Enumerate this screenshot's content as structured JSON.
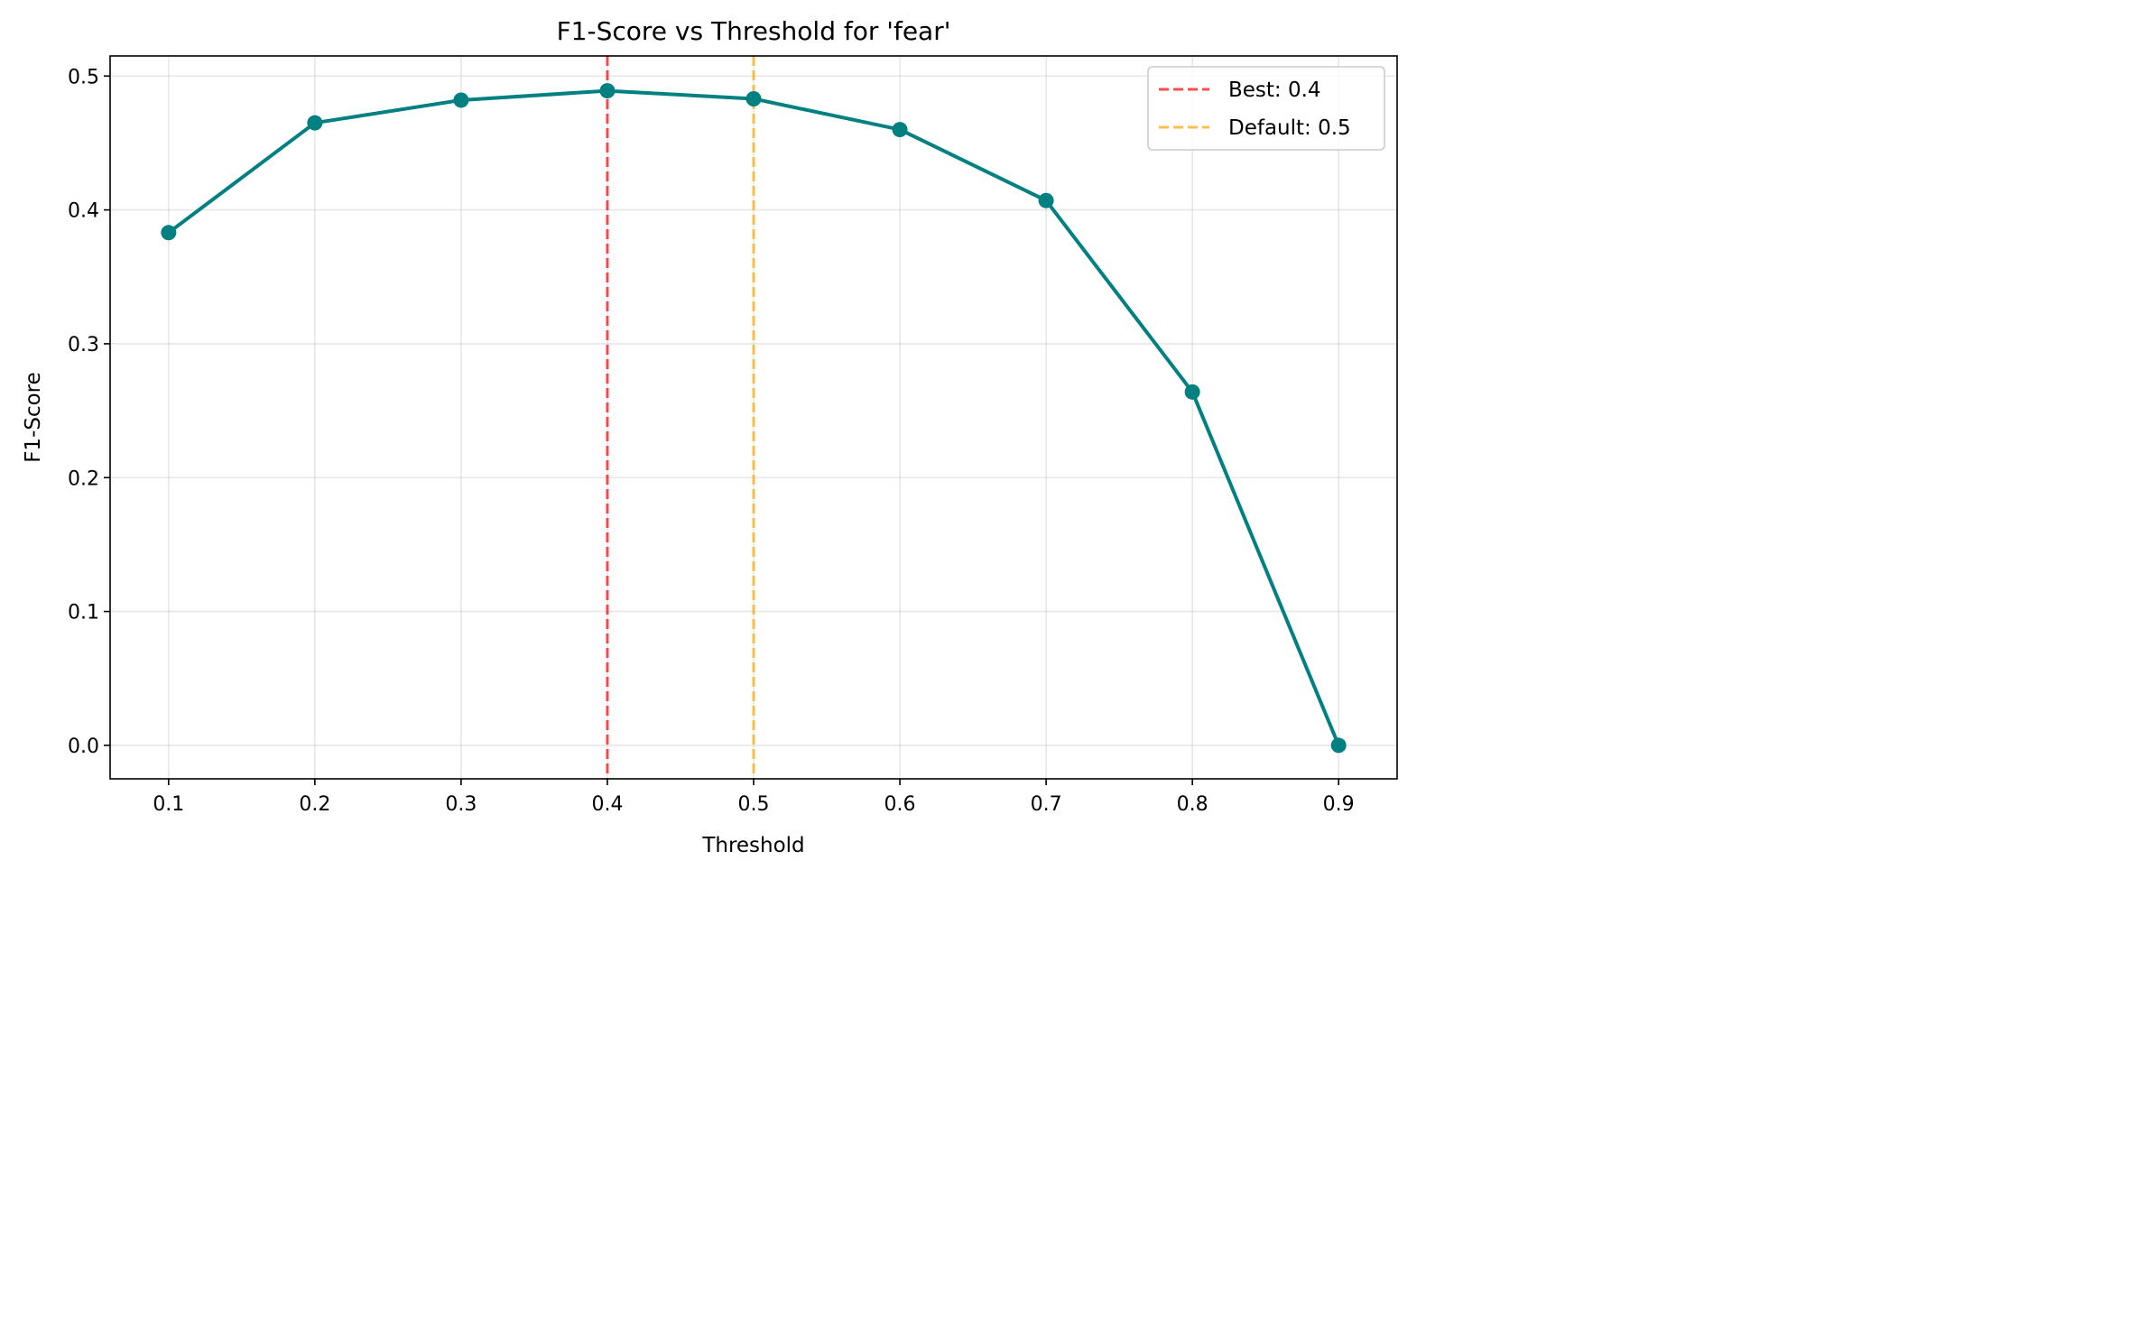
{
  "chart_data": {
    "type": "line",
    "title": "F1-Score vs Threshold for 'fear'",
    "xlabel": "Threshold",
    "ylabel": "F1-Score",
    "xlim": [
      0.06,
      0.94
    ],
    "ylim": [
      -0.025,
      0.515
    ],
    "xticks": [
      "0.1",
      "0.2",
      "0.3",
      "0.4",
      "0.5",
      "0.6",
      "0.7",
      "0.8",
      "0.9"
    ],
    "yticks": [
      "0.0",
      "0.1",
      "0.2",
      "0.3",
      "0.4",
      "0.5"
    ],
    "grid": true,
    "legend_position": "upper right",
    "series": [
      {
        "color": "#008080",
        "marker": "circle",
        "x": [
          0.1,
          0.2,
          0.3,
          0.4,
          0.5,
          0.6,
          0.7,
          0.8,
          0.9
        ],
        "y": [
          0.383,
          0.465,
          0.482,
          0.489,
          0.483,
          0.46,
          0.407,
          0.264,
          0.0
        ]
      }
    ],
    "reference_lines": [
      {
        "name": "Best: 0.4",
        "x": 0.4,
        "color": "#ff0000",
        "style": "dashed"
      },
      {
        "name": "Default: 0.5",
        "x": 0.5,
        "color": "#ffa500",
        "style": "dashed"
      }
    ]
  }
}
